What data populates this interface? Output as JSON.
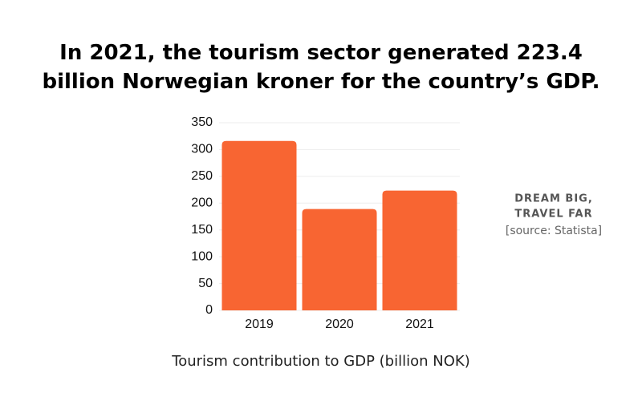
{
  "chart_data": {
    "type": "bar",
    "title": "In 2021, the tourism sector generated 223.4 billion Norwegian kroner for the country’s GDP.",
    "x_label": "Tourism contribution to GDP (billion NOK)",
    "annotations": [
      "DREAM BIG,",
      "TRAVEL FAR",
      "[source: Statista]"
    ],
    "categories": [
      "2019",
      "2020",
      "2021"
    ],
    "values": [
      316,
      189,
      223.4
    ],
    "color": "#f86532",
    "ylim": [
      0,
      350
    ],
    "yticks": [
      0,
      50,
      100,
      150,
      200,
      250,
      300,
      350
    ],
    "grid": true
  }
}
